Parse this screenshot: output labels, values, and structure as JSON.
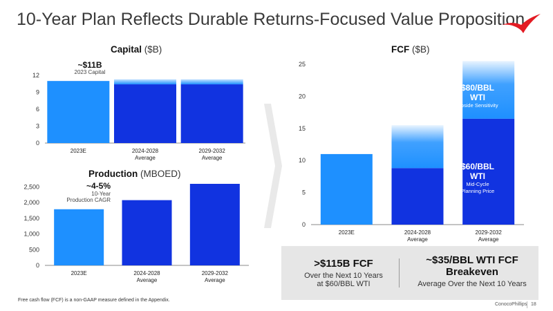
{
  "slide": {
    "title": "10-Year Plan Reflects Durable Returns-Focused Value Proposition",
    "footnote": "Free cash flow (FCF) is a non-GAAP measure defined in the Appendix.",
    "brand": "ConocoPhillips",
    "page_number": "18"
  },
  "capital_chart": {
    "title": "Capital",
    "unit": "($B)",
    "callout_value": "~$11B",
    "callout_label": "2023 Capital"
  },
  "production_chart": {
    "title": "Production",
    "unit": "(MBOED)",
    "callout_value": "~4-5%",
    "callout_label_line1": "10-Year",
    "callout_label_line2": "Production CAGR"
  },
  "fcf_chart": {
    "title": "FCF",
    "unit": "($B)",
    "upper_label_line1": "$80/BBL",
    "upper_label_line2": "WTI",
    "upper_sub": "Upside Sensitivity",
    "lower_label_line1": "$60/BBL",
    "lower_label_line2": "WTI",
    "lower_sub_line1": "Mid-Cycle",
    "lower_sub_line2": "Planning Price"
  },
  "kpis": {
    "left_big": ">$115B FCF",
    "left_small_line1": "Over the Next 10 Years",
    "left_small_line2": "at $60/BBL WTI",
    "right_big_line1": "~$35/BBL WTI FCF",
    "right_big_line2": "Breakeven",
    "right_small": "Average Over the Next 10 Years"
  },
  "colors": {
    "light_blue": "#1e90ff",
    "dark_blue": "#1133e0",
    "logo_red": "#e31b23",
    "arrow_gray": "#e9e9e9"
  },
  "chart_data": [
    {
      "type": "bar",
      "title": "Capital",
      "unit": "($B)",
      "categories": [
        [
          "2023E"
        ],
        [
          "2024-2028",
          "Average"
        ],
        [
          "2029-2032",
          "Average"
        ]
      ],
      "values": [
        11,
        10.4,
        10.4
      ],
      "band_top": [
        null,
        11.3,
        11.3
      ],
      "ylim": [
        0,
        12
      ],
      "yticks": [
        0,
        3,
        6,
        9,
        12
      ],
      "ytick_labels": [
        "0",
        "3",
        "6",
        "9",
        "12"
      ]
    },
    {
      "type": "bar",
      "title": "Production",
      "unit": "(MBOED)",
      "categories": [
        [
          "2023E"
        ],
        [
          "2024-2028",
          "Average"
        ],
        [
          "2029-2032",
          "Average"
        ]
      ],
      "values": [
        1790,
        2080,
        2600
      ],
      "ylim": [
        0,
        2600
      ],
      "yticks": [
        0,
        500,
        1000,
        1500,
        2000,
        2500
      ],
      "ytick_labels": [
        "0",
        "500",
        "1,000",
        "1,500",
        "2,000",
        "2,500"
      ]
    },
    {
      "type": "bar",
      "title": "FCF",
      "unit": "($B)",
      "categories": [
        [
          "2023E"
        ],
        [
          "2024-2028",
          "Average"
        ],
        [
          "2029-2032",
          "Average"
        ]
      ],
      "series": [
        {
          "name": "$60/BBL WTI",
          "values": [
            11,
            8.8,
            16.5
          ]
        },
        {
          "name": "$80/BBL WTI",
          "values": [
            null,
            15.5,
            25.5
          ]
        }
      ],
      "ylim": [
        0,
        25
      ],
      "yticks": [
        0,
        5,
        10,
        15,
        20,
        25
      ],
      "ytick_labels": [
        "0",
        "5",
        "10",
        "15",
        "20",
        "25"
      ]
    }
  ]
}
